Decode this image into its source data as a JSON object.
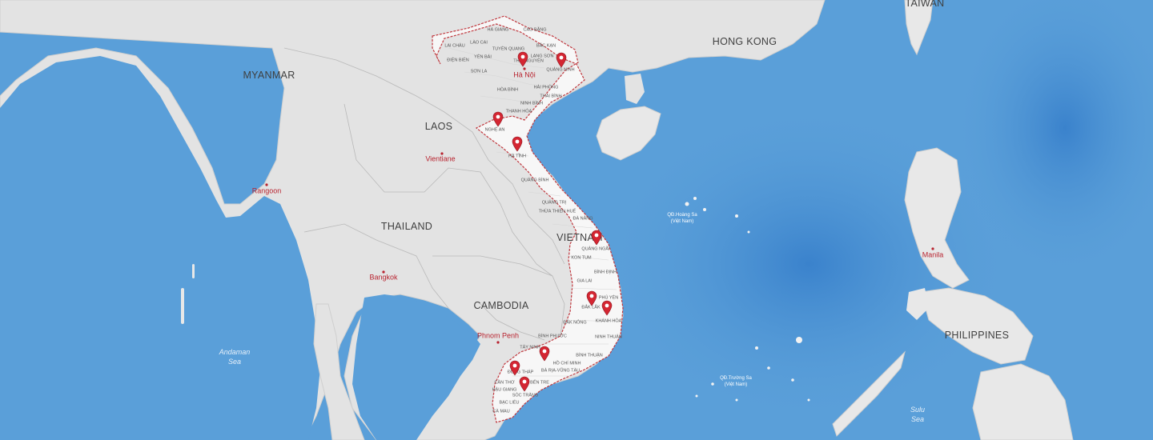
{
  "map": {
    "colors": {
      "sea": "#5a9fd9",
      "deep_sea": "#3f86cf",
      "land": "#e4e4e4",
      "vietnam": "#f7f7f7",
      "vietnam_border": "#c0393f",
      "pin": "#d42632"
    },
    "countries": [
      {
        "id": "myanmar",
        "name": "MYANMAR"
      },
      {
        "id": "laos",
        "name": "LAOS"
      },
      {
        "id": "thailand",
        "name": "THAILAND"
      },
      {
        "id": "vietnam",
        "name": "VIETNAM"
      },
      {
        "id": "cambodia",
        "name": "CAMBODIA"
      },
      {
        "id": "philippines",
        "name": "PHILIPPINES"
      },
      {
        "id": "hong-kong",
        "name": "HONG KONG"
      },
      {
        "id": "taiwan",
        "name": "TAIWAN"
      }
    ],
    "cities": [
      {
        "id": "hanoi",
        "name": "Hà Nội"
      },
      {
        "id": "vientiane",
        "name": "Vientiane"
      },
      {
        "id": "rangoon",
        "name": "Rangoon"
      },
      {
        "id": "bangkok",
        "name": "Bangkok"
      },
      {
        "id": "phnom-penh",
        "name": "Phnom Penh"
      },
      {
        "id": "manila",
        "name": "Manila"
      }
    ],
    "seas": [
      {
        "id": "andaman",
        "line1": "Andaman",
        "line2": "Sea"
      },
      {
        "id": "sulu",
        "line1": "Sulu",
        "line2": "Sea"
      }
    ],
    "islands": [
      {
        "id": "hoang-sa",
        "line1": "QĐ.Hoàng Sa",
        "line2": "(Việt Nam)"
      },
      {
        "id": "truong-sa",
        "line1": "QĐ.Trường Sa",
        "line2": "(Việt Nam)"
      }
    ],
    "provinces": [
      {
        "id": "ha-giang",
        "name": "HÀ GIANG"
      },
      {
        "id": "cao-bang",
        "name": "CAO BẰNG"
      },
      {
        "id": "lao-cai",
        "name": "LÀO CAI"
      },
      {
        "id": "bac-kan",
        "name": "BẮC KẠN"
      },
      {
        "id": "lai-chau",
        "name": "LAI CHÂU"
      },
      {
        "id": "tuyen-quang",
        "name": "TUYÊN QUANG"
      },
      {
        "id": "yen-bai",
        "name": "YÊN BÁI"
      },
      {
        "id": "dien-bien",
        "name": "ĐIỆN BIÊN"
      },
      {
        "id": "thai-nguyen",
        "name": "THÁI NGUYÊN"
      },
      {
        "id": "lang-son",
        "name": "LẠNG SƠN"
      },
      {
        "id": "son-la",
        "name": "SƠN LA"
      },
      {
        "id": "quang-ninh",
        "name": "QUẢNG NINH"
      },
      {
        "id": "hai-phong",
        "name": "HẢI PHÒNG"
      },
      {
        "id": "hoa-binh",
        "name": "HÒA BÌNH"
      },
      {
        "id": "thai-binh",
        "name": "THÁI BÌNH"
      },
      {
        "id": "ninh-binh",
        "name": "NINH BÌNH"
      },
      {
        "id": "thanh-hoa",
        "name": "THANH HÓA"
      },
      {
        "id": "nghe-an",
        "name": "NGHỆ AN"
      },
      {
        "id": "ha-tinh",
        "name": "HÀ TĨNH"
      },
      {
        "id": "quang-binh",
        "name": "QUẢNG BÌNH"
      },
      {
        "id": "quang-tri",
        "name": "QUẢNG TRỊ"
      },
      {
        "id": "thua-thien-hue",
        "name": "THỪA THIÊN HUẾ"
      },
      {
        "id": "da-nang",
        "name": "ĐÀ NẴNG"
      },
      {
        "id": "quang-ngai",
        "name": "QUẢNG NGÃI"
      },
      {
        "id": "kon-tum",
        "name": "KON TUM"
      },
      {
        "id": "binh-dinh",
        "name": "BÌNH ĐỊNH"
      },
      {
        "id": "gia-lai",
        "name": "GIA LAI"
      },
      {
        "id": "phu-yen",
        "name": "PHÚ YÊN"
      },
      {
        "id": "dak-lak",
        "name": "ĐẮK LẮK"
      },
      {
        "id": "khanh-hoa",
        "name": "KHÁNH HÒA"
      },
      {
        "id": "dak-nong",
        "name": "ĐẮK NÔNG"
      },
      {
        "id": "ninh-thuan",
        "name": "NINH THUẬN"
      },
      {
        "id": "binh-phuoc",
        "name": "BÌNH PHƯỚC"
      },
      {
        "id": "binh-thuan",
        "name": "BÌNH THUẬN"
      },
      {
        "id": "tay-ninh",
        "name": "TÂY NINH"
      },
      {
        "id": "ho-chi-minh",
        "name": "HỒ CHÍ MINH"
      },
      {
        "id": "dong-thap",
        "name": "ĐỒNG THÁP"
      },
      {
        "id": "ba-ria-vung-tau",
        "name": "BÀ RỊA-VŨNG TÀU"
      },
      {
        "id": "can-tho",
        "name": "CẦN THƠ"
      },
      {
        "id": "ben-tre",
        "name": "BẾN TRE"
      },
      {
        "id": "hau-giang",
        "name": "HẬU GIANG"
      },
      {
        "id": "soc-trang",
        "name": "SÓC TRĂNG"
      },
      {
        "id": "bac-lieu",
        "name": "BẠC LIÊU"
      },
      {
        "id": "ca-mau",
        "name": "CÀ MAU"
      }
    ],
    "markers": [
      {
        "id": "hanoi"
      },
      {
        "id": "quang-ninh"
      },
      {
        "id": "nghe-an"
      },
      {
        "id": "ha-tinh"
      },
      {
        "id": "quang-ngai"
      },
      {
        "id": "dak-lak"
      },
      {
        "id": "khanh-hoa"
      },
      {
        "id": "ho-chi-minh"
      },
      {
        "id": "dong-thap"
      },
      {
        "id": "soc-trang"
      }
    ]
  }
}
